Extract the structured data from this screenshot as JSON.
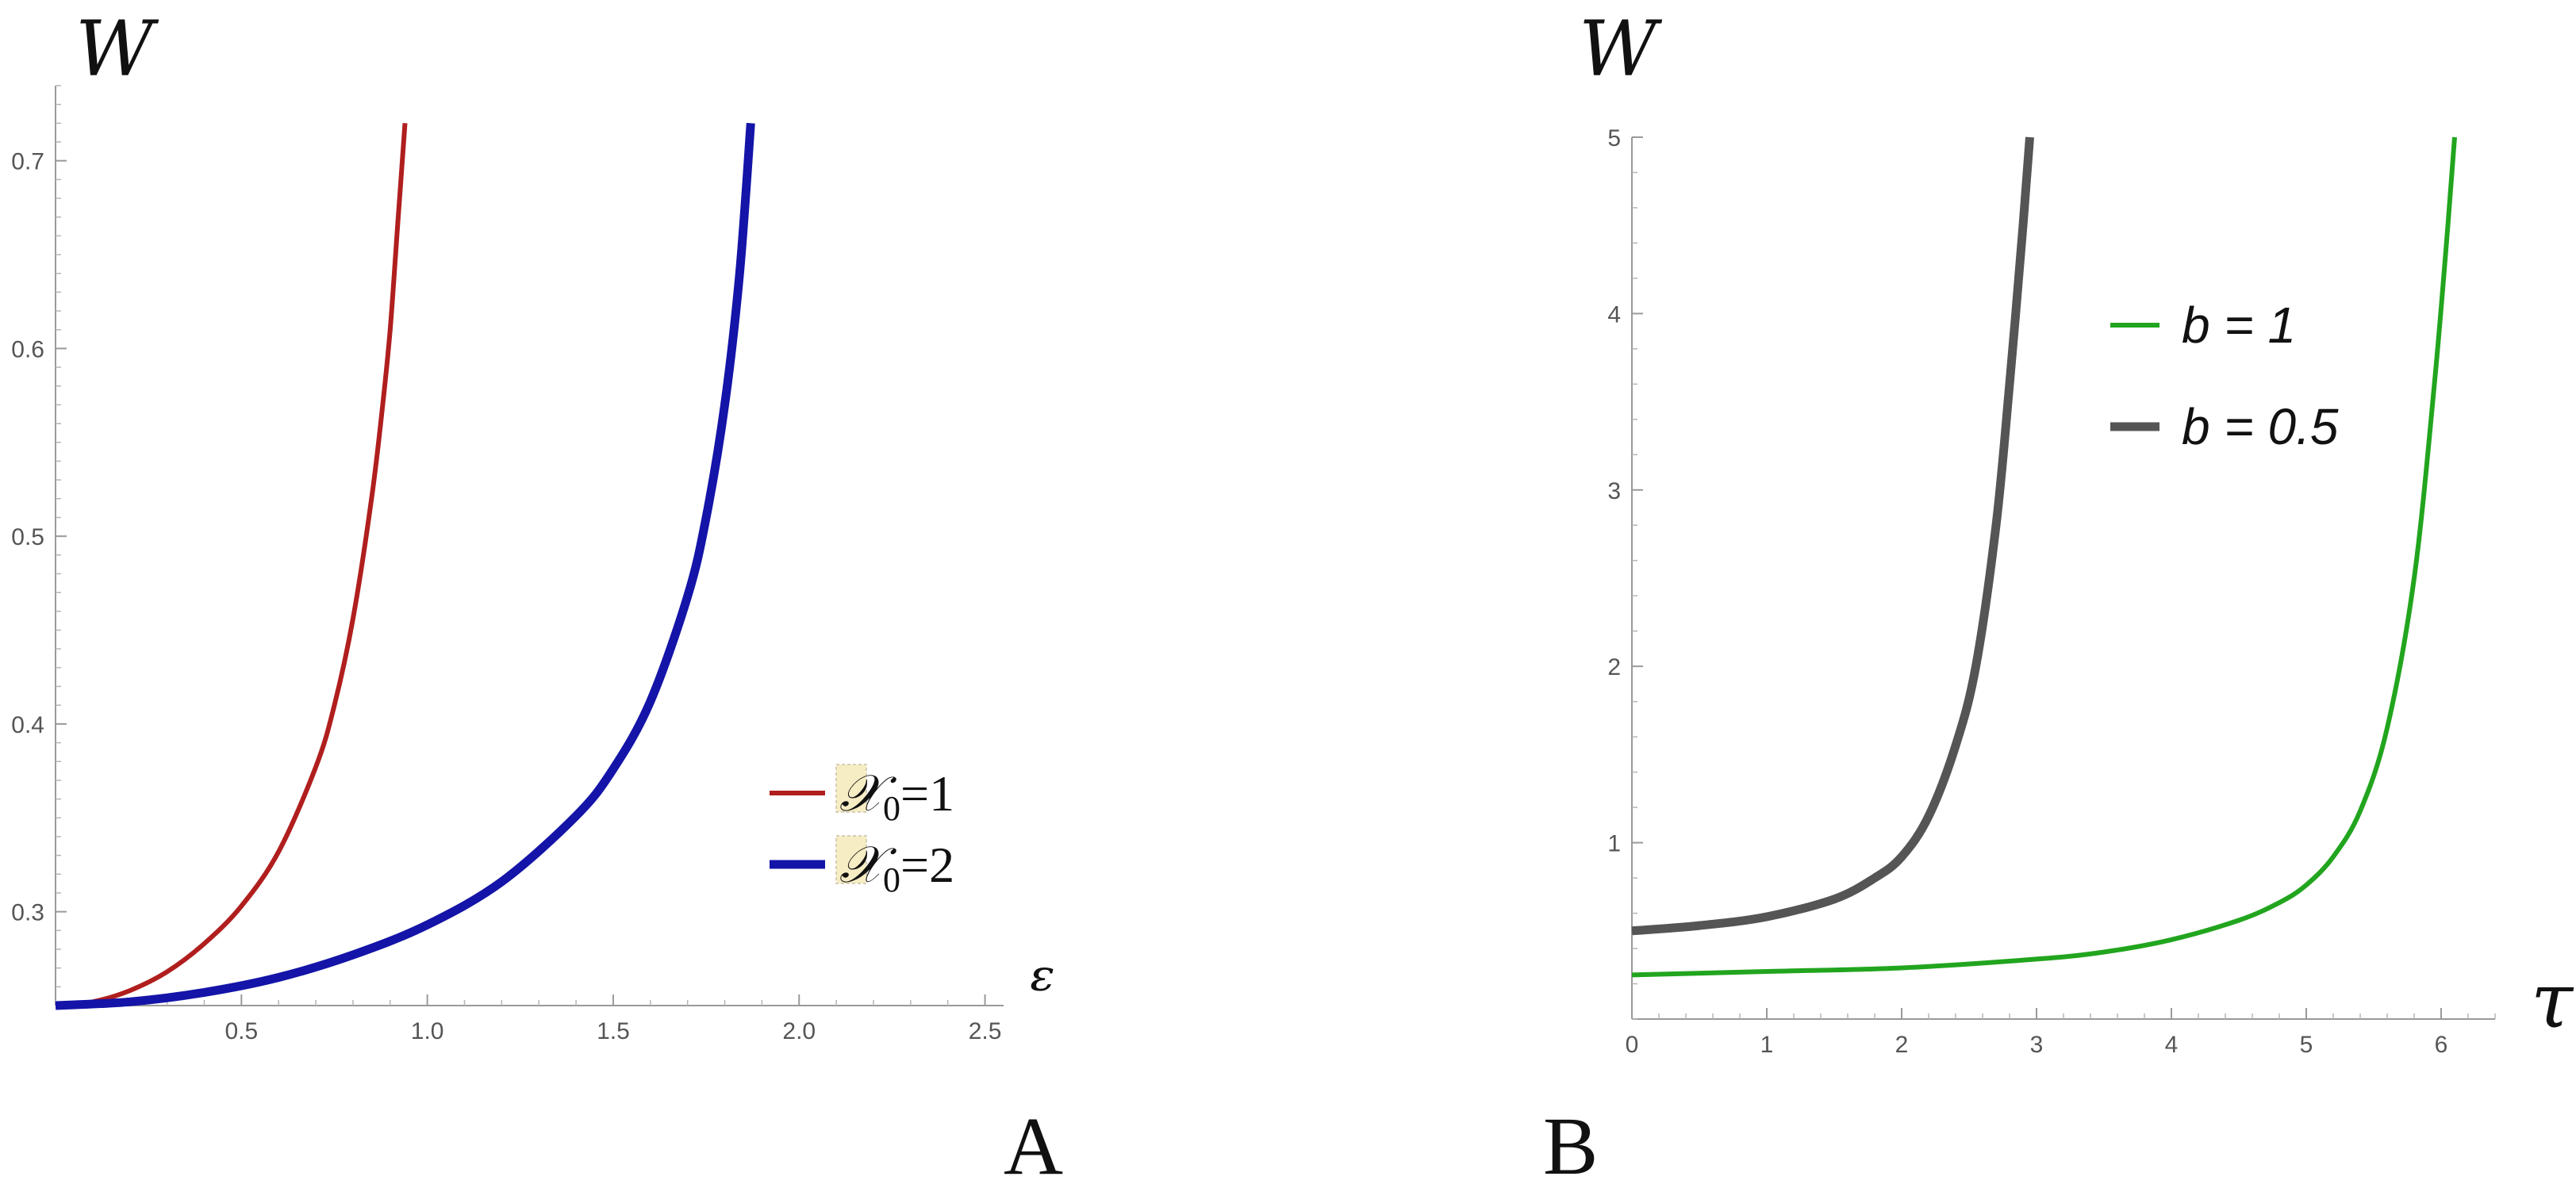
{
  "chart_data": [
    {
      "panel_label": "A",
      "type": "line",
      "xlabel": "ᵋ",
      "ylabel": "W",
      "xlim": [
        0,
        2.55
      ],
      "ylim": [
        0.25,
        0.74
      ],
      "x_ticks": [
        0.5,
        1.0,
        1.5,
        2.0,
        2.5
      ],
      "x_tick_labels": [
        "0.5",
        "1.0",
        "1.5",
        "2.0",
        "2.5"
      ],
      "y_ticks": [
        0.3,
        0.4,
        0.5,
        0.6,
        0.7
      ],
      "y_tick_labels": [
        "0.3",
        "0.4",
        "0.5",
        "0.6",
        "0.7"
      ],
      "grid": false,
      "legend_position": "right",
      "series": [
        {
          "name": "𝒳₀=1",
          "legend_symbol": "𝒳",
          "legend_sub": "0",
          "legend_suffix": "=1",
          "color": "#b01e1e",
          "x": [
            0,
            0.1,
            0.2,
            0.3,
            0.4,
            0.5,
            0.6,
            0.7,
            0.75,
            0.8,
            0.85,
            0.88,
            0.9,
            0.92,
            0.94
          ],
          "y": [
            0.25,
            0.252,
            0.258,
            0.268,
            0.283,
            0.303,
            0.332,
            0.377,
            0.41,
            0.456,
            0.52,
            0.57,
            0.61,
            0.665,
            0.72
          ]
        },
        {
          "name": "𝒳₀=2",
          "legend_symbol": "𝒳",
          "legend_sub": "0",
          "legend_suffix": "=2",
          "color": "#1414a8",
          "x": [
            0,
            0.2,
            0.4,
            0.6,
            0.8,
            1.0,
            1.2,
            1.4,
            1.5,
            1.6,
            1.7,
            1.75,
            1.8,
            1.84,
            1.87
          ],
          "y": [
            0.25,
            0.252,
            0.257,
            0.265,
            0.277,
            0.293,
            0.316,
            0.351,
            0.376,
            0.412,
            0.468,
            0.51,
            0.57,
            0.64,
            0.72
          ]
        }
      ]
    },
    {
      "panel_label": "B",
      "type": "line",
      "xlabel": "τ",
      "ylabel": "W",
      "xlim": [
        0,
        6.4
      ],
      "ylim": [
        0,
        5
      ],
      "x_ticks": [
        0,
        1,
        2,
        3,
        4,
        5,
        6
      ],
      "x_tick_labels": [
        "0",
        "1",
        "2",
        "3",
        "4",
        "5",
        "6"
      ],
      "y_ticks": [
        1,
        2,
        3,
        4,
        5
      ],
      "y_tick_labels": [
        "1",
        "2",
        "3",
        "4",
        "5"
      ],
      "grid": false,
      "legend_position": "top-right",
      "series": [
        {
          "name": "b = 1",
          "color": "#22a51e",
          "x": [
            0,
            1,
            2,
            3,
            3.5,
            4,
            4.5,
            4.8,
            5,
            5.2,
            5.4,
            5.6,
            5.8,
            5.95,
            6.05,
            6.1
          ],
          "y": [
            0.25,
            0.27,
            0.29,
            0.34,
            0.38,
            0.45,
            0.56,
            0.66,
            0.76,
            0.92,
            1.18,
            1.65,
            2.5,
            3.6,
            4.5,
            5.0
          ]
        },
        {
          "name": "b = 0.5",
          "color": "#555555",
          "x": [
            0,
            0.5,
            1,
            1.5,
            1.8,
            2.0,
            2.2,
            2.4,
            2.55,
            2.7,
            2.8,
            2.9,
            2.95
          ],
          "y": [
            0.5,
            0.53,
            0.58,
            0.68,
            0.8,
            0.92,
            1.15,
            1.55,
            2.0,
            2.8,
            3.6,
            4.5,
            5.0
          ]
        }
      ]
    }
  ]
}
